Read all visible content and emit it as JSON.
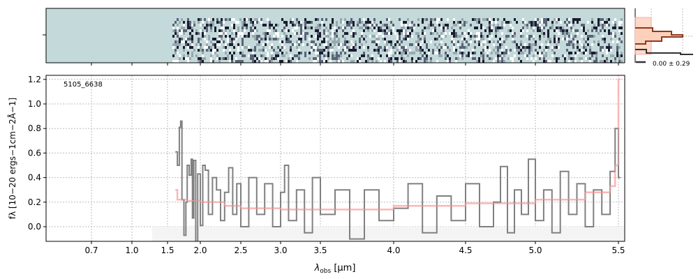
{
  "chart_data": {
    "type": "line",
    "object_id": "5105_6638",
    "xlabel": "λobs [μm]",
    "xlabel_main": "λ",
    "xlabel_sub": "obs",
    "xlabel_unit": " [μm]",
    "ylabel": "fλ [10−20 ergs−1cm−2Å−1]",
    "xticks": [
      "0.7",
      "1.0",
      "1.5",
      "2.0",
      "2.5",
      "3.0",
      "3.5",
      "4.0",
      "4.5",
      "5.0",
      "5.5"
    ],
    "yticks": [
      "0.0",
      "0.2",
      "0.4",
      "0.6",
      "0.8",
      "1.0",
      "1.2"
    ],
    "ylim": [
      -0.12,
      1.23
    ],
    "grid": true,
    "colors": {
      "data": "#808080",
      "model": "#ffb0b0",
      "twod_bg": "#c4dada",
      "hist_data": "#8b3a1f",
      "hist_fill": "#fdd0bc"
    },
    "series": [
      {
        "name": "data",
        "x": [
          1.62,
          1.65,
          1.68,
          1.7,
          1.72,
          1.75,
          1.78,
          1.8,
          1.83,
          1.86,
          1.88,
          1.9,
          1.93,
          1.96,
          2.0,
          2.03,
          2.06,
          2.1,
          2.15,
          2.2,
          2.25,
          2.3,
          2.35,
          2.4,
          2.45,
          2.5,
          2.6,
          2.7,
          2.8,
          2.9,
          3.0,
          3.05,
          3.1,
          3.2,
          3.3,
          3.4,
          3.5,
          3.6,
          3.7,
          3.8,
          3.9,
          4.0,
          4.1,
          4.2,
          4.3,
          4.4,
          4.5,
          4.6,
          4.7,
          4.75,
          4.8,
          4.85,
          4.9,
          4.95,
          5.0,
          5.05,
          5.1,
          5.15,
          5.2,
          5.25,
          5.3,
          5.35,
          5.4,
          5.45,
          5.48,
          5.5
        ],
        "y": [
          0.61,
          0.5,
          0.81,
          0.86,
          0.22,
          -0.07,
          0.2,
          0.5,
          0.42,
          0.55,
          0.07,
          0.54,
          -0.15,
          0.43,
          0.01,
          0.5,
          0.46,
          0.1,
          0.4,
          0.3,
          0.05,
          0.28,
          0.48,
          0.1,
          0.35,
          0.0,
          0.4,
          0.1,
          0.35,
          0.0,
          0.28,
          0.5,
          0.05,
          0.3,
          -0.05,
          0.4,
          0.1,
          0.3,
          -0.1,
          0.3,
          0.05,
          0.15,
          0.35,
          -0.05,
          0.25,
          0.05,
          0.35,
          0.0,
          0.2,
          0.49,
          -0.05,
          0.3,
          0.1,
          0.55,
          0.05,
          0.3,
          -0.05,
          0.45,
          0.1,
          0.35,
          0.0,
          0.3,
          0.1,
          0.45,
          0.8,
          0.4
        ]
      },
      {
        "name": "model",
        "x": [
          1.62,
          1.65,
          1.8,
          2.0,
          2.3,
          2.5,
          3.0,
          3.5,
          4.0,
          4.5,
          5.0,
          5.3,
          5.45,
          5.48,
          5.5
        ],
        "y": [
          0.3,
          0.22,
          0.21,
          0.2,
          0.17,
          0.15,
          0.14,
          0.14,
          0.17,
          0.19,
          0.22,
          0.28,
          0.33,
          0.5,
          1.2
        ]
      }
    ],
    "histogram_label": "0.00 ± 0.29"
  }
}
